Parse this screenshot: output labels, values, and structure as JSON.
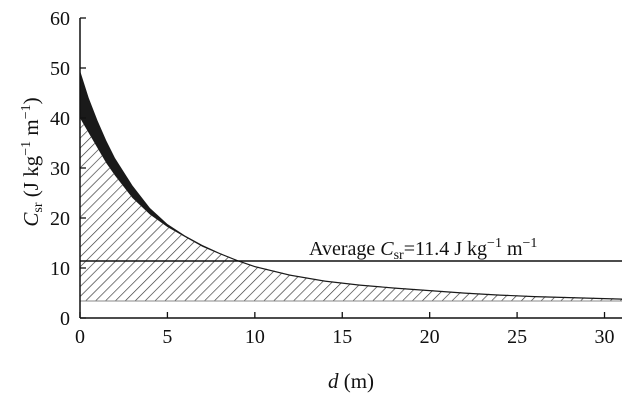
{
  "chart_data": {
    "type": "area",
    "xlabel": {
      "var": "d",
      "unit": " (m)"
    },
    "ylabel": {
      "var": "C",
      "sub": "sr",
      "unit_prefix": " (J kg",
      "exp1": "−1",
      "unit_mid": " m",
      "exp2": "−1",
      "unit_suffix": ")"
    },
    "xlim": [
      0,
      31
    ],
    "ylim": [
      0,
      60
    ],
    "x_ticks": [
      0,
      5,
      10,
      15,
      20,
      25,
      30
    ],
    "y_ticks": [
      0,
      10,
      20,
      30,
      40,
      50,
      60
    ],
    "floor_value": 3.4,
    "curve_upper": {
      "x": [
        0,
        0.5,
        1,
        1.5,
        2,
        3,
        4,
        5,
        6,
        7,
        8,
        9,
        10,
        12,
        14,
        16,
        18,
        20,
        22,
        24,
        26,
        28,
        30,
        31
      ],
      "y": [
        49.5,
        44,
        39.5,
        35.5,
        32,
        26.5,
        22,
        18.8,
        16.5,
        14.6,
        13,
        11.6,
        10.4,
        8.7,
        7.5,
        6.7,
        6.1,
        5.6,
        5.1,
        4.7,
        4.4,
        4.2,
        4.0,
        3.9
      ]
    },
    "curve_lower": {
      "x": [
        0,
        0.5,
        1,
        1.5,
        2,
        3,
        4,
        5,
        6,
        7,
        8,
        9,
        10,
        12,
        14,
        16,
        18,
        20,
        22,
        24,
        26,
        28,
        30,
        31
      ],
      "y": [
        40,
        37,
        34,
        31,
        28.5,
        24,
        20.7,
        18.2,
        16.2,
        14.5,
        13,
        11.6,
        10.4,
        8.7,
        7.5,
        6.7,
        6.1,
        5.6,
        5.1,
        4.7,
        4.4,
        4.2,
        4.0,
        3.9
      ]
    },
    "average_line": {
      "value": 11.4,
      "x_start": 0,
      "x_end": 31,
      "label_prefix": "Average ",
      "label_var": "C",
      "label_sub": "sr",
      "label_value": "=11.4 J kg",
      "label_exp1": "−1",
      "label_mid": " m",
      "label_exp2": "−1"
    },
    "colors": {
      "band": "#1a1a1a",
      "hatch": "#333333",
      "axis": "#111111",
      "background": "#ffffff"
    }
  }
}
